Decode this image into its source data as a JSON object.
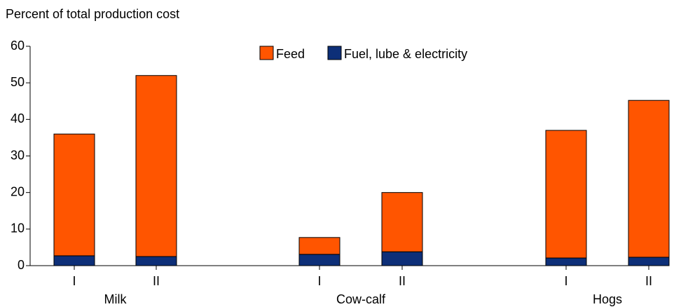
{
  "chart_data": {
    "type": "bar",
    "stacked": true,
    "title": "Percent of total production cost",
    "categories": [
      "I",
      "II",
      "I",
      "II",
      "I",
      "II"
    ],
    "groups": [
      "Milk",
      "Cow-calf",
      "Hogs"
    ],
    "series": [
      {
        "name": "Feed",
        "color": "#ff5500",
        "values": [
          33.3,
          49.5,
          4.6,
          16.2,
          34.9,
          42.9
        ]
      },
      {
        "name": "Fuel, lube & electricity",
        "color": "#0d2f78",
        "values": [
          2.7,
          2.5,
          3.1,
          3.8,
          2.1,
          2.3
        ]
      }
    ],
    "ylim": [
      0,
      60
    ],
    "yticks": [
      0,
      10,
      20,
      30,
      40,
      50,
      60
    ],
    "grid": false
  }
}
